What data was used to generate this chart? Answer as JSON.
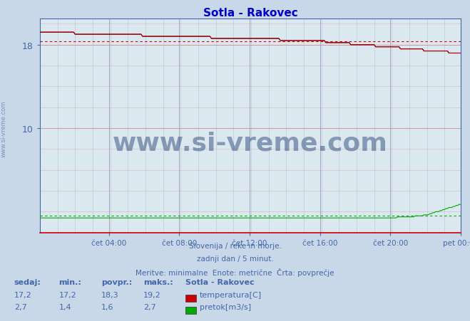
{
  "title": "Sotla - Rakovec",
  "title_color": "#0000cc",
  "bg_color": "#c8d8e8",
  "plot_bg_color": "#dce8f0",
  "grid_color_v": "#9999bb",
  "grid_color_h": "#cc9999",
  "text_color": "#4466aa",
  "x_tick_labels": [
    "čet 04:00",
    "čet 08:00",
    "čet 12:00",
    "čet 16:00",
    "čet 20:00",
    "pet 00:00"
  ],
  "x_tick_positions": [
    0.1667,
    0.3333,
    0.5,
    0.6667,
    0.8333,
    1.0
  ],
  "ylim": [
    0,
    20.5
  ],
  "subtitle_lines": [
    "Slovenija / reke in morje.",
    "zadnji dan / 5 minut.",
    "Meritve: minimalne  Enote: metrične  Črta: povprečje"
  ],
  "temp_color": "#cc0000",
  "flow_color": "#00aa00",
  "height_color": "#000000",
  "avg_temp": 18.3,
  "avg_flow": 1.6,
  "temp_min": 17.2,
  "temp_max": 19.2,
  "flow_min": 1.4,
  "flow_max": 2.7,
  "temp_now": 17.2,
  "flow_now": 2.7,
  "watermark": "www.si-vreme.com",
  "watermark_color": "#1a3a6a",
  "side_text": "www.si-vreme.com",
  "n_points": 288,
  "y_ticks": [
    10,
    18
  ],
  "figsize": [
    6.59,
    4.52
  ],
  "dpi": 100
}
